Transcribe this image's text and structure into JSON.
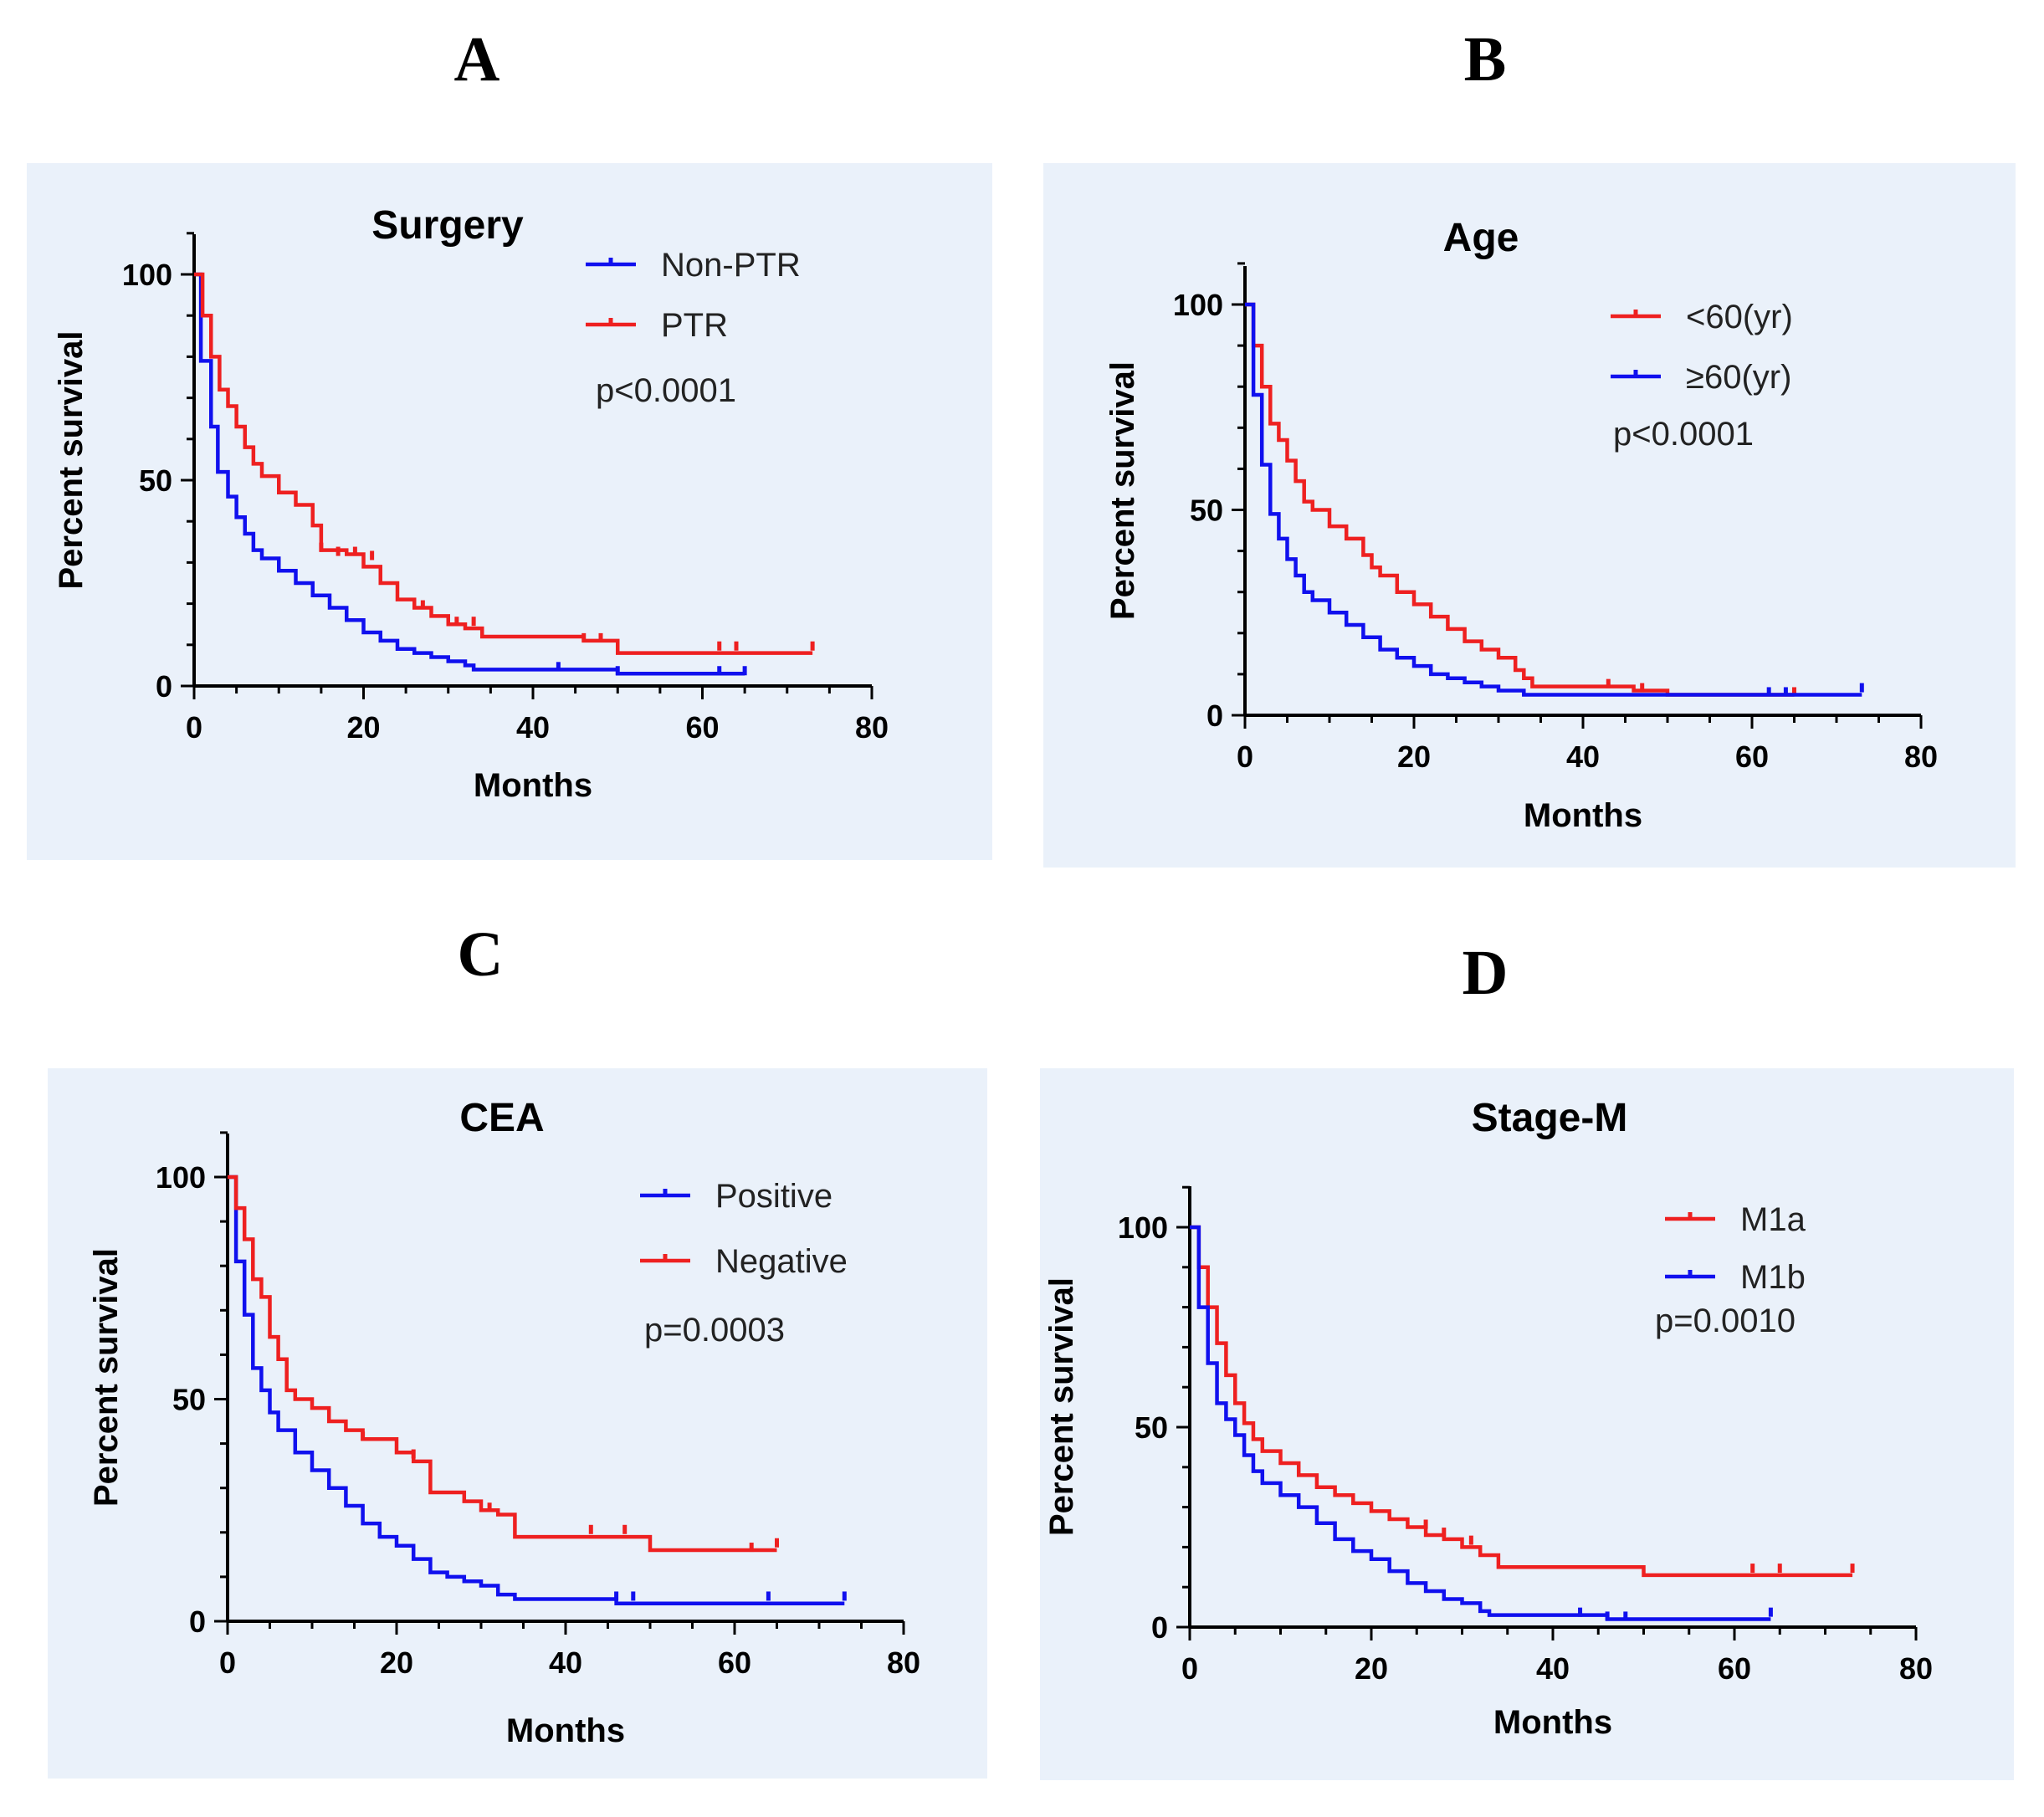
{
  "chart_data": [
    {
      "type": "line",
      "panel": "A",
      "title": "Surgery",
      "xlabel": "Months",
      "ylabel": "Percent survival",
      "xlim": [
        0,
        80
      ],
      "ylim": [
        0,
        110
      ],
      "xticks": [
        "0",
        "20",
        "40",
        "60",
        "80"
      ],
      "yticks": [
        "0",
        "50",
        "100"
      ],
      "legend": "top-right",
      "pvalue": "p<0.0001",
      "series": [
        {
          "name": "Non-PTR",
          "color": "#1010ee",
          "steps": [
            [
              0,
              100
            ],
            [
              0.8,
              79
            ],
            [
              2,
              63
            ],
            [
              2.8,
              52
            ],
            [
              4,
              46
            ],
            [
              5,
              41
            ],
            [
              6,
              37
            ],
            [
              7,
              33
            ],
            [
              8,
              31
            ],
            [
              10,
              28
            ],
            [
              12,
              25
            ],
            [
              14,
              22
            ],
            [
              16,
              19
            ],
            [
              18,
              16
            ],
            [
              20,
              13
            ],
            [
              22,
              11
            ],
            [
              24,
              9
            ],
            [
              26,
              8
            ],
            [
              28,
              7
            ],
            [
              30,
              6
            ],
            [
              32,
              5
            ],
            [
              33,
              4
            ],
            [
              43,
              4
            ],
            [
              50,
              3
            ],
            [
              65,
              3
            ]
          ],
          "censored": [
            [
              43,
              4
            ],
            [
              50,
              3
            ],
            [
              62,
              3
            ],
            [
              65,
              3
            ]
          ]
        },
        {
          "name": "PTR",
          "color": "#ee2020",
          "steps": [
            [
              0,
              100
            ],
            [
              1,
              90
            ],
            [
              2,
              80
            ],
            [
              3,
              72
            ],
            [
              4,
              68
            ],
            [
              5,
              63
            ],
            [
              6,
              58
            ],
            [
              7,
              54
            ],
            [
              8,
              51
            ],
            [
              10,
              47
            ],
            [
              12,
              44
            ],
            [
              14,
              39
            ],
            [
              15,
              33
            ],
            [
              18,
              32
            ],
            [
              20,
              29
            ],
            [
              22,
              25
            ],
            [
              24,
              21
            ],
            [
              26,
              19
            ],
            [
              28,
              17
            ],
            [
              30,
              15
            ],
            [
              32,
              14
            ],
            [
              34,
              12
            ],
            [
              46,
              11
            ],
            [
              50,
              8
            ],
            [
              73,
              8
            ]
          ],
          "censored": [
            [
              15,
              33
            ],
            [
              17,
              32
            ],
            [
              19,
              32
            ],
            [
              21,
              31
            ],
            [
              27,
              19
            ],
            [
              31,
              15
            ],
            [
              33,
              15
            ],
            [
              46,
              11
            ],
            [
              48,
              11
            ],
            [
              62,
              9
            ],
            [
              64,
              9
            ],
            [
              73,
              9
            ]
          ]
        }
      ]
    },
    {
      "type": "line",
      "panel": "B",
      "title": "Age",
      "xlabel": "Months",
      "ylabel": "Percent survival",
      "xlim": [
        0,
        80
      ],
      "ylim": [
        0,
        110
      ],
      "xticks": [
        "0",
        "20",
        "40",
        "60",
        "80"
      ],
      "yticks": [
        "0",
        "50",
        "100"
      ],
      "legend": "top-right",
      "pvalue": "p<0.0001",
      "series": [
        {
          "name": "<60(yr)",
          "color": "#ee2020",
          "steps": [
            [
              0,
              100
            ],
            [
              1,
              90
            ],
            [
              2,
              80
            ],
            [
              3,
              71
            ],
            [
              4,
              67
            ],
            [
              5,
              62
            ],
            [
              6,
              57
            ],
            [
              7,
              52
            ],
            [
              8,
              50
            ],
            [
              10,
              46
            ],
            [
              12,
              43
            ],
            [
              14,
              39
            ],
            [
              15,
              36
            ],
            [
              16,
              34
            ],
            [
              18,
              30
            ],
            [
              20,
              27
            ],
            [
              22,
              24
            ],
            [
              24,
              21
            ],
            [
              26,
              18
            ],
            [
              28,
              16
            ],
            [
              30,
              14
            ],
            [
              32,
              11
            ],
            [
              33,
              9
            ],
            [
              34,
              7
            ],
            [
              46,
              6
            ],
            [
              50,
              5
            ],
            [
              65,
              5
            ]
          ],
          "censored": [
            [
              43,
              7
            ],
            [
              47,
              6
            ],
            [
              65,
              5
            ]
          ]
        },
        {
          "name": "≥60(yr)",
          "color": "#1010ee",
          "steps": [
            [
              0,
              100
            ],
            [
              1,
              78
            ],
            [
              2,
              61
            ],
            [
              3,
              49
            ],
            [
              4,
              43
            ],
            [
              5,
              38
            ],
            [
              6,
              34
            ],
            [
              7,
              30
            ],
            [
              8,
              28
            ],
            [
              10,
              25
            ],
            [
              12,
              22
            ],
            [
              14,
              19
            ],
            [
              16,
              16
            ],
            [
              18,
              14
            ],
            [
              20,
              12
            ],
            [
              22,
              10
            ],
            [
              24,
              9
            ],
            [
              26,
              8
            ],
            [
              28,
              7
            ],
            [
              30,
              6
            ],
            [
              33,
              5
            ],
            [
              73,
              5
            ]
          ],
          "censored": [
            [
              62,
              5
            ],
            [
              64,
              5
            ],
            [
              73,
              6
            ]
          ]
        }
      ]
    },
    {
      "type": "line",
      "panel": "C",
      "title": "CEA",
      "xlabel": "Months",
      "ylabel": "Percent survival",
      "xlim": [
        0,
        80
      ],
      "ylim": [
        0,
        110
      ],
      "xticks": [
        "0",
        "20",
        "40",
        "60",
        "80"
      ],
      "yticks": [
        "0",
        "50",
        "100"
      ],
      "legend": "top-right",
      "pvalue": "p=0.0003",
      "series": [
        {
          "name": "Positive",
          "color": "#1010ee",
          "steps": [
            [
              0,
              100
            ],
            [
              1,
              81
            ],
            [
              2,
              69
            ],
            [
              3,
              57
            ],
            [
              4,
              52
            ],
            [
              5,
              47
            ],
            [
              6,
              43
            ],
            [
              8,
              38
            ],
            [
              10,
              34
            ],
            [
              12,
              30
            ],
            [
              14,
              26
            ],
            [
              16,
              22
            ],
            [
              18,
              19
            ],
            [
              20,
              17
            ],
            [
              22,
              14
            ],
            [
              24,
              11
            ],
            [
              26,
              10
            ],
            [
              28,
              9
            ],
            [
              30,
              8
            ],
            [
              32,
              6
            ],
            [
              34,
              5
            ],
            [
              46,
              4
            ],
            [
              73,
              4
            ]
          ],
          "censored": [
            [
              46,
              5
            ],
            [
              48,
              5
            ],
            [
              64,
              5
            ],
            [
              73,
              5
            ]
          ]
        },
        {
          "name": "Negative",
          "color": "#ee2020",
          "steps": [
            [
              0,
              100
            ],
            [
              1,
              93
            ],
            [
              2,
              86
            ],
            [
              3,
              77
            ],
            [
              4,
              73
            ],
            [
              5,
              64
            ],
            [
              6,
              59
            ],
            [
              7,
              52
            ],
            [
              8,
              50
            ],
            [
              10,
              48
            ],
            [
              12,
              45
            ],
            [
              14,
              43
            ],
            [
              16,
              41
            ],
            [
              20,
              38
            ],
            [
              22,
              36
            ],
            [
              24,
              29
            ],
            [
              28,
              27
            ],
            [
              30,
              25
            ],
            [
              32,
              24
            ],
            [
              34,
              19
            ],
            [
              46,
              19
            ],
            [
              50,
              16
            ],
            [
              65,
              16
            ]
          ],
          "censored": [
            [
              16,
              41
            ],
            [
              22,
              37
            ],
            [
              31,
              25
            ],
            [
              43,
              20
            ],
            [
              47,
              20
            ],
            [
              62,
              16
            ],
            [
              65,
              17
            ]
          ]
        }
      ]
    },
    {
      "type": "line",
      "panel": "D",
      "title": "Stage-M",
      "xlabel": "Months",
      "ylabel": "Percent survival",
      "xlim": [
        0,
        80
      ],
      "ylim": [
        0,
        110
      ],
      "xticks": [
        "0",
        "20",
        "40",
        "60",
        "80"
      ],
      "yticks": [
        "0",
        "50",
        "100"
      ],
      "legend": "top-right",
      "pvalue": "p=0.0010",
      "series": [
        {
          "name": "M1a",
          "color": "#ee2020",
          "steps": [
            [
              0,
              100
            ],
            [
              1,
              90
            ],
            [
              2,
              80
            ],
            [
              3,
              71
            ],
            [
              4,
              63
            ],
            [
              5,
              56
            ],
            [
              6,
              51
            ],
            [
              7,
              47
            ],
            [
              8,
              44
            ],
            [
              10,
              41
            ],
            [
              12,
              38
            ],
            [
              14,
              35
            ],
            [
              16,
              33
            ],
            [
              18,
              31
            ],
            [
              20,
              29
            ],
            [
              22,
              27
            ],
            [
              24,
              25
            ],
            [
              26,
              23
            ],
            [
              28,
              22
            ],
            [
              30,
              20
            ],
            [
              32,
              18
            ],
            [
              34,
              15
            ],
            [
              46,
              15
            ],
            [
              50,
              13
            ],
            [
              73,
              13
            ]
          ],
          "censored": [
            [
              26,
              25
            ],
            [
              28,
              23
            ],
            [
              31,
              21
            ],
            [
              62,
              14
            ],
            [
              65,
              14
            ],
            [
              73,
              14
            ]
          ]
        },
        {
          "name": "M1b",
          "color": "#1010ee",
          "steps": [
            [
              0,
              100
            ],
            [
              1,
              80
            ],
            [
              2,
              66
            ],
            [
              3,
              56
            ],
            [
              4,
              52
            ],
            [
              5,
              48
            ],
            [
              6,
              43
            ],
            [
              7,
              39
            ],
            [
              8,
              36
            ],
            [
              10,
              33
            ],
            [
              12,
              30
            ],
            [
              14,
              26
            ],
            [
              16,
              22
            ],
            [
              18,
              19
            ],
            [
              20,
              17
            ],
            [
              22,
              14
            ],
            [
              24,
              11
            ],
            [
              26,
              9
            ],
            [
              28,
              7
            ],
            [
              30,
              6
            ],
            [
              32,
              4
            ],
            [
              33,
              3
            ],
            [
              46,
              2
            ],
            [
              64,
              2
            ]
          ],
          "censored": [
            [
              43,
              3
            ],
            [
              46,
              2
            ],
            [
              48,
              2
            ],
            [
              64,
              3
            ]
          ]
        }
      ]
    }
  ]
}
